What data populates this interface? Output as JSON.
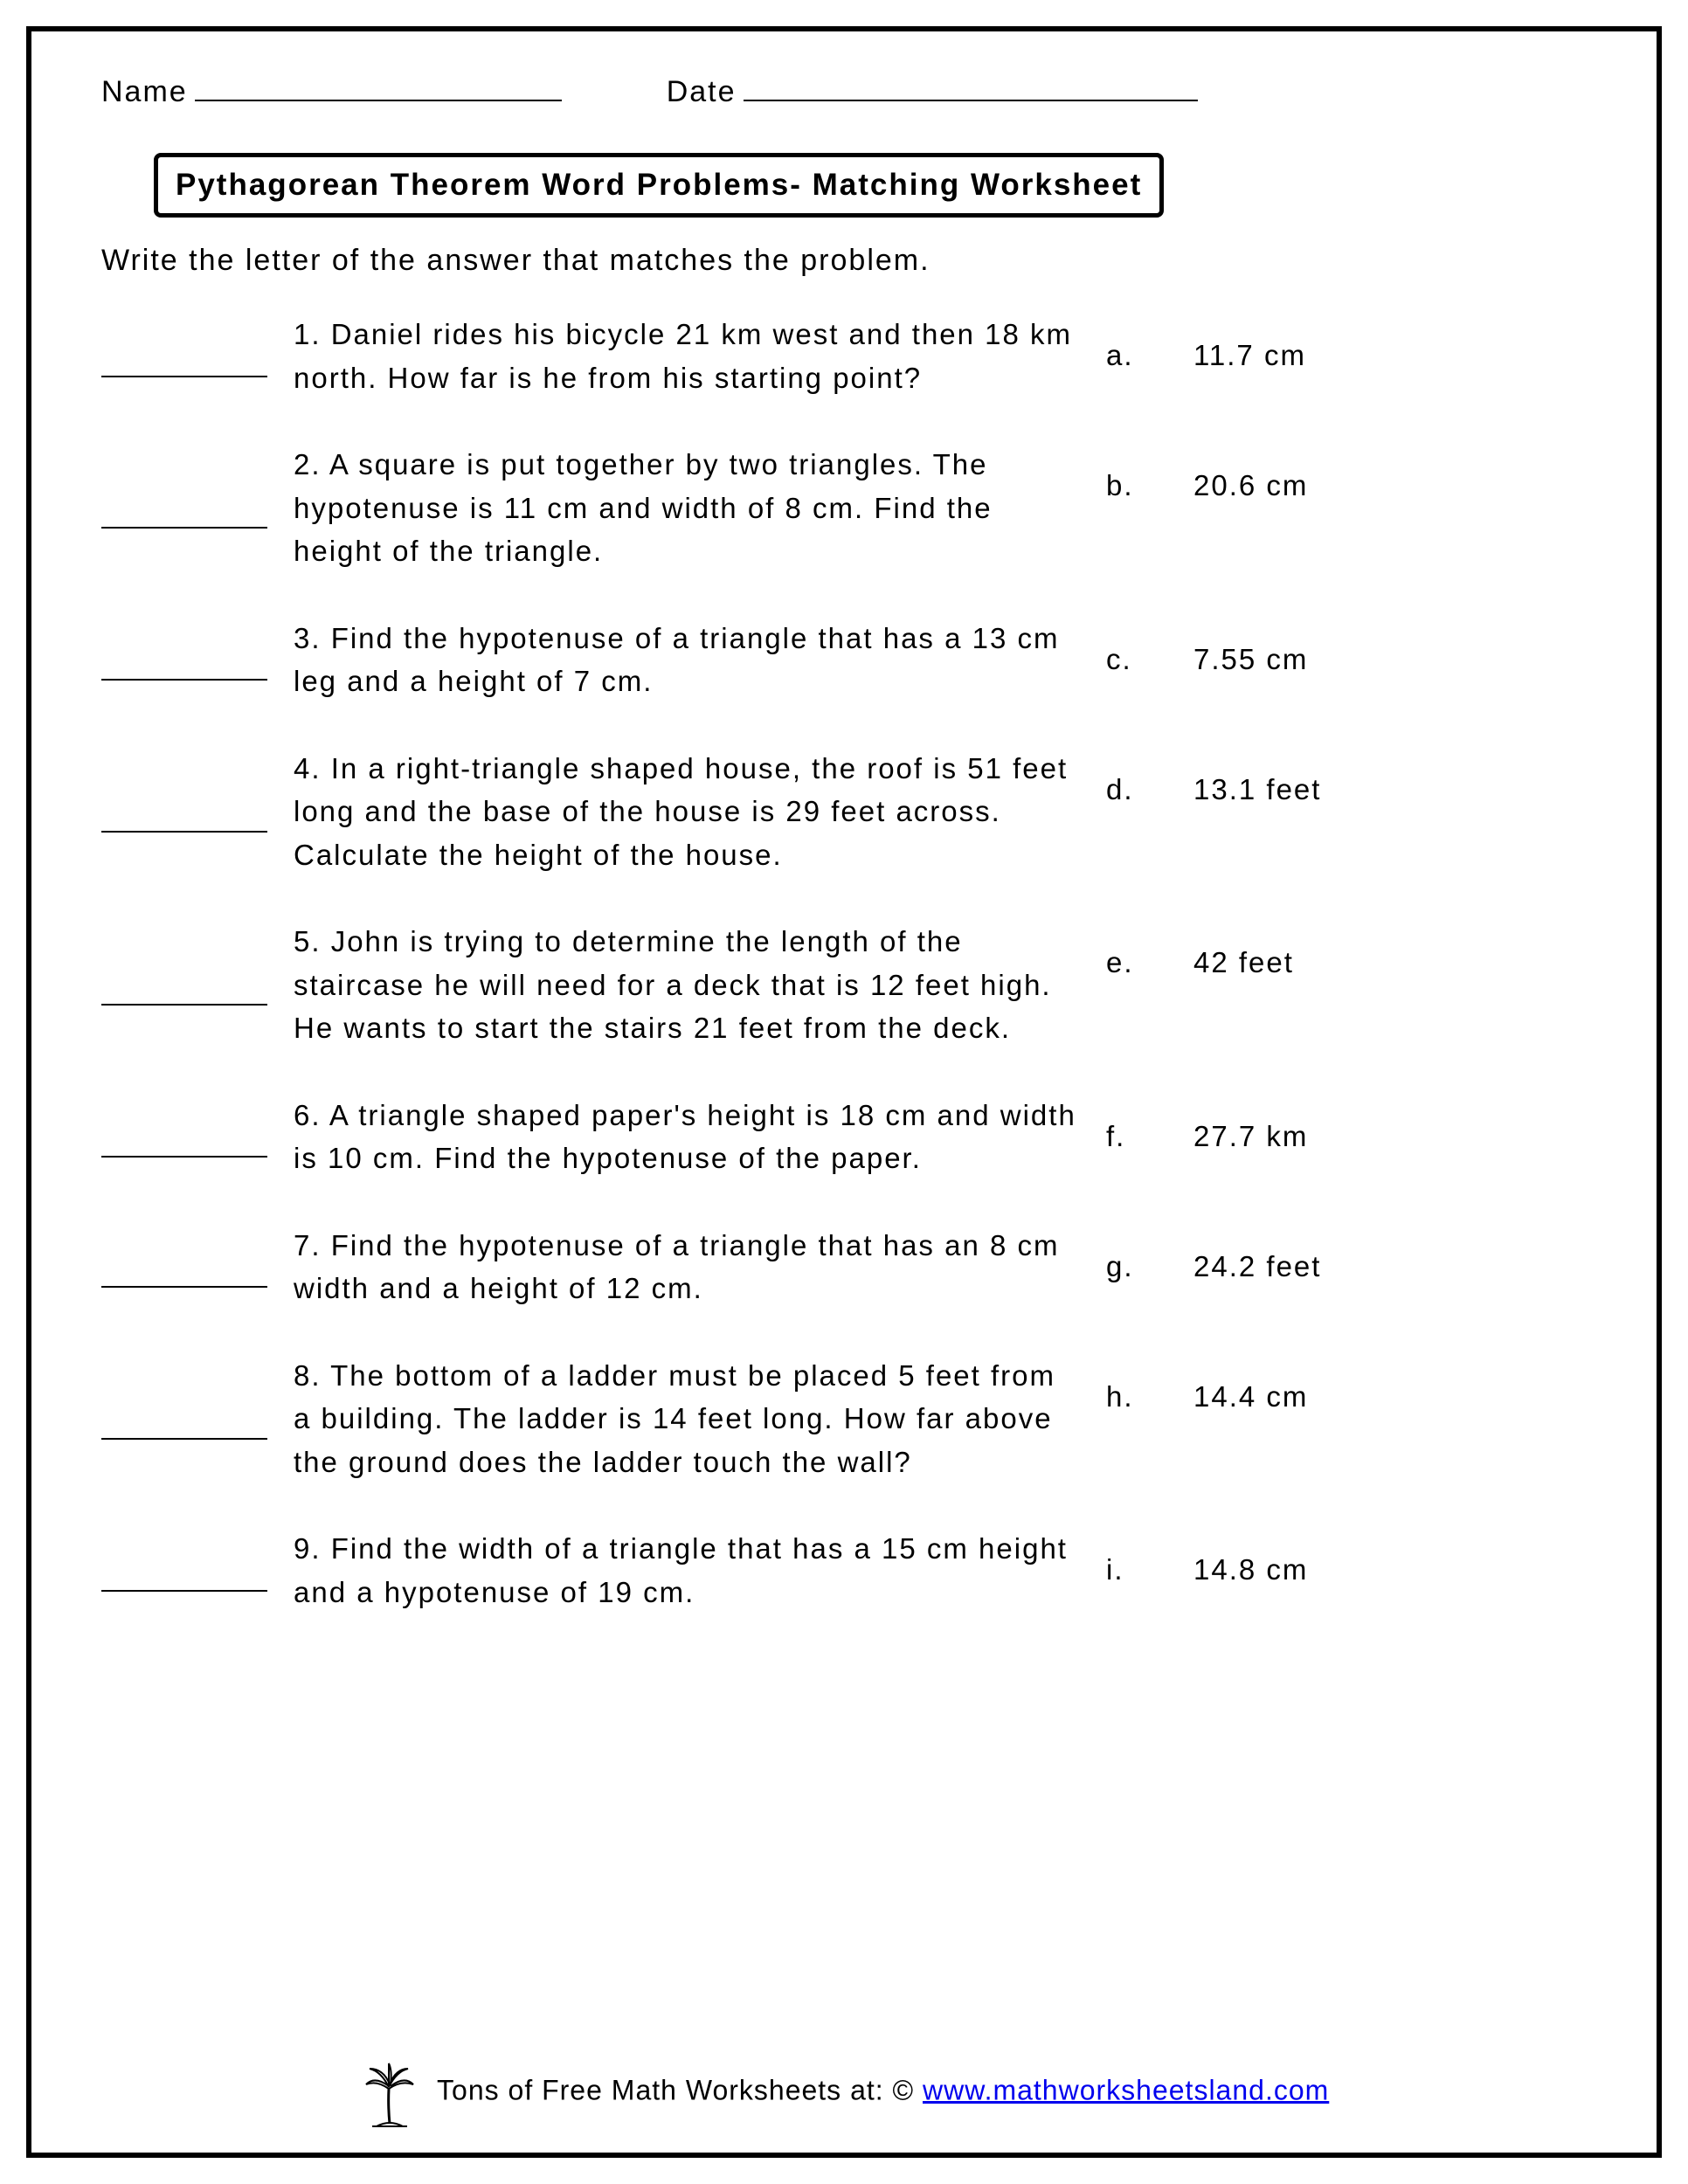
{
  "header": {
    "name_label": "Name",
    "date_label": "Date"
  },
  "title": "Pythagorean Theorem Word Problems- Matching Worksheet",
  "instructions": "Write the letter of the answer that matches the problem.",
  "problems": [
    {
      "question": "1. Daniel rides his bicycle 21 km west and then 18 km north. How far is he from his starting point?",
      "letter": "a.",
      "value": "11.7 cm"
    },
    {
      "question": "2. A square is put together by two triangles. The hypotenuse is 11 cm and width of 8 cm. Find the height of the triangle.",
      "letter": "b.",
      "value": "20.6 cm"
    },
    {
      "question": "3. Find the hypotenuse of a triangle that has a 13 cm leg and a height of 7 cm.",
      "letter": "c.",
      "value": "7.55 cm"
    },
    {
      "question": "4. In a right-triangle shaped house, the roof is 51 feet long and the base of the house is 29 feet across. Calculate the height of the house.",
      "letter": "d.",
      "value": "13.1 feet"
    },
    {
      "question": "5. John is trying to determine the length of the staircase he will need for a deck that is 12 feet high. He wants to start the stairs 21 feet from the deck.",
      "letter": "e.",
      "value": "42 feet"
    },
    {
      "question": "6. A triangle shaped paper's height is 18 cm and width is 10 cm. Find the hypotenuse of the paper.",
      "letter": "f.",
      "value": "27.7  km"
    },
    {
      "question": "7.  Find the hypotenuse of a triangle that has an 8 cm width and a height of 12 cm.",
      "letter": "g.",
      "value": "24.2 feet"
    },
    {
      "question": "8. The bottom of a ladder must be placed 5 feet from a building. The ladder is 14 feet long.  How  far  above  the  ground  does  the  ladder  touch  the  wall?",
      "letter": "h.",
      "value": "14.4 cm"
    },
    {
      "question": "9. Find the width of a triangle that has a 15 cm height and a hypotenuse of 19 cm.",
      "letter": "i.",
      "value": "14.8 cm"
    }
  ],
  "footer": {
    "prefix": "Tons of Free Math Worksheets at: © ",
    "link_text": "www.mathworksheetsland.com"
  }
}
